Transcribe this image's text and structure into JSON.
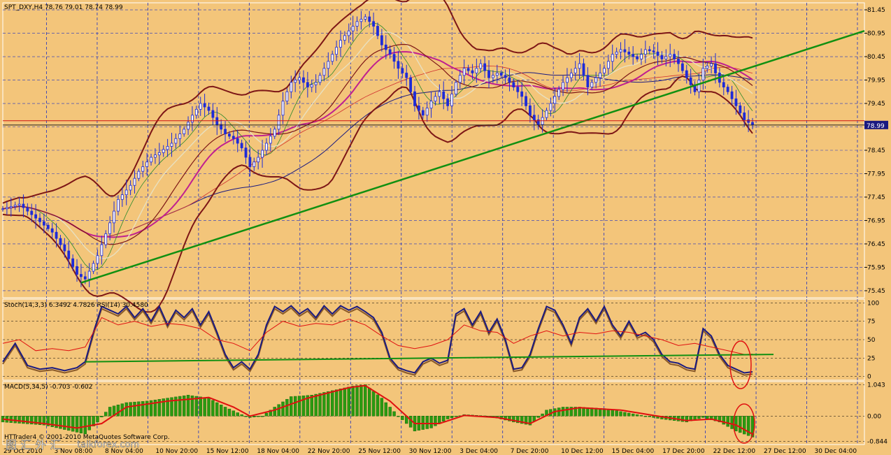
{
  "colors": {
    "background": "#f3c57a",
    "candle": "#1e2bd8",
    "bollinger": "#7d1616",
    "trendline": "#119011",
    "ma_pink": "#c02090",
    "ma_navy": "#1a1a80",
    "stoch_main": "#1a1a80",
    "stoch_signal": "#8a5a2a",
    "rsi": "#e01010",
    "macd_hist": "#2a9a10",
    "macd_signal": "#e01010",
    "grid": "#2030c0",
    "annotation": "#e01010"
  },
  "chart_data": [
    {
      "type": "candlestick",
      "title": "SPT_DXY,H4  78.76 79.01 78.74 78.99",
      "instrument": "SPT_DXY",
      "timeframe": "H4",
      "ohlc_header": {
        "open": 78.76,
        "high": 79.01,
        "low": 78.74,
        "close": 78.99
      },
      "ylim": [
        75.3,
        81.6
      ],
      "y_ticks": [
        "81.45",
        "80.95",
        "80.45",
        "79.95",
        "79.45",
        "78.95",
        "78.45",
        "77.95",
        "77.45",
        "76.95",
        "76.45",
        "75.95",
        "75.45"
      ],
      "current_price": "78.99",
      "x_labels": [
        "29 Oct 2010",
        "3 Nov 08:00",
        "8 Nov 04:00",
        "10 Nov 20:00",
        "15 Nov 12:00",
        "18 Nov 04:00",
        "22 Nov 20:00",
        "25 Nov 12:00",
        "30 Nov 12:00",
        "3 Dec 04:00",
        "7 Dec 20:00",
        "10 Dec 12:00",
        "15 Dec 04:00",
        "17 Dec 20:00",
        "22 Dec 12:00",
        "27 Dec 12:00",
        "30 Dec 04:00"
      ],
      "close_path": [
        [
          0,
          77.2
        ],
        [
          4,
          77.3
        ],
        [
          8,
          77.0
        ],
        [
          12,
          76.7
        ],
        [
          15,
          76.3
        ],
        [
          18,
          75.8
        ],
        [
          20,
          75.7
        ],
        [
          23,
          76.2
        ],
        [
          26,
          76.9
        ],
        [
          28,
          77.4
        ],
        [
          31,
          77.7
        ],
        [
          33,
          78.0
        ],
        [
          36,
          78.3
        ],
        [
          38,
          78.4
        ],
        [
          41,
          78.6
        ],
        [
          44,
          78.9
        ],
        [
          46,
          79.2
        ],
        [
          48,
          79.45
        ],
        [
          50,
          79.3
        ],
        [
          52,
          79.0
        ],
        [
          54,
          78.8
        ],
        [
          56,
          78.7
        ],
        [
          58,
          78.5
        ],
        [
          60,
          78.1
        ],
        [
          62,
          78.3
        ],
        [
          64,
          78.6
        ],
        [
          66,
          78.9
        ],
        [
          68,
          79.5
        ],
        [
          70,
          79.9
        ],
        [
          72,
          80.0
        ],
        [
          74,
          79.8
        ],
        [
          76,
          79.9
        ],
        [
          78,
          80.2
        ],
        [
          80,
          80.5
        ],
        [
          82,
          80.8
        ],
        [
          84,
          81.0
        ],
        [
          86,
          81.2
        ],
        [
          88,
          81.3
        ],
        [
          90,
          81.1
        ],
        [
          92,
          80.7
        ],
        [
          94,
          80.5
        ],
        [
          96,
          80.2
        ],
        [
          98,
          80.0
        ],
        [
          100,
          79.4
        ],
        [
          102,
          79.2
        ],
        [
          104,
          79.5
        ],
        [
          106,
          79.7
        ],
        [
          108,
          79.4
        ],
        [
          110,
          79.9
        ],
        [
          112,
          80.2
        ],
        [
          114,
          80.1
        ],
        [
          116,
          80.3
        ],
        [
          118,
          80.0
        ],
        [
          120,
          80.1
        ],
        [
          122,
          80.0
        ],
        [
          124,
          79.8
        ],
        [
          126,
          79.6
        ],
        [
          128,
          79.2
        ],
        [
          130,
          79.0
        ],
        [
          132,
          79.3
        ],
        [
          134,
          79.6
        ],
        [
          136,
          79.9
        ],
        [
          138,
          80.1
        ],
        [
          140,
          80.3
        ],
        [
          142,
          79.8
        ],
        [
          144,
          80.0
        ],
        [
          146,
          80.2
        ],
        [
          148,
          80.5
        ],
        [
          150,
          80.6
        ],
        [
          152,
          80.5
        ],
        [
          154,
          80.4
        ],
        [
          156,
          80.6
        ],
        [
          158,
          80.55
        ],
        [
          160,
          80.4
        ],
        [
          162,
          80.5
        ],
        [
          164,
          80.3
        ],
        [
          166,
          80.0
        ],
        [
          168,
          79.7
        ],
        [
          170,
          80.2
        ],
        [
          172,
          80.3
        ],
        [
          174,
          79.9
        ],
        [
          176,
          79.7
        ],
        [
          178,
          79.4
        ],
        [
          180,
          79.1
        ],
        [
          182,
          78.99
        ]
      ],
      "series": [
        {
          "name": "Stoch(14,3,3)",
          "main": 6.3492,
          "signal": 4.7826
        },
        {
          "name": "RSI(14)",
          "value": 30.458
        },
        {
          "name": "MACD(5,34,5)",
          "macd": -0.703,
          "signal": -0.602
        }
      ]
    },
    {
      "type": "line",
      "title": "Stoch(14,3,3) 6.3492 4.7826  RSI(14) 30.4580",
      "ylim": [
        -5,
        105
      ],
      "y_ticks": [
        "100",
        "75",
        "50",
        "25",
        "0"
      ],
      "stoch_path": [
        [
          0,
          20
        ],
        [
          3,
          45
        ],
        [
          6,
          15
        ],
        [
          9,
          10
        ],
        [
          12,
          12
        ],
        [
          15,
          8
        ],
        [
          18,
          12
        ],
        [
          20,
          20
        ],
        [
          22,
          60
        ],
        [
          24,
          95
        ],
        [
          26,
          90
        ],
        [
          28,
          85
        ],
        [
          30,
          95
        ],
        [
          32,
          80
        ],
        [
          34,
          92
        ],
        [
          36,
          75
        ],
        [
          38,
          95
        ],
        [
          40,
          70
        ],
        [
          42,
          90
        ],
        [
          44,
          80
        ],
        [
          46,
          92
        ],
        [
          48,
          70
        ],
        [
          50,
          88
        ],
        [
          52,
          60
        ],
        [
          54,
          30
        ],
        [
          56,
          12
        ],
        [
          58,
          20
        ],
        [
          60,
          10
        ],
        [
          62,
          30
        ],
        [
          64,
          70
        ],
        [
          66,
          95
        ],
        [
          68,
          88
        ],
        [
          70,
          96
        ],
        [
          72,
          85
        ],
        [
          74,
          92
        ],
        [
          76,
          80
        ],
        [
          78,
          96
        ],
        [
          80,
          85
        ],
        [
          82,
          96
        ],
        [
          84,
          90
        ],
        [
          86,
          95
        ],
        [
          88,
          88
        ],
        [
          90,
          80
        ],
        [
          92,
          60
        ],
        [
          94,
          25
        ],
        [
          96,
          12
        ],
        [
          98,
          8
        ],
        [
          100,
          5
        ],
        [
          102,
          20
        ],
        [
          104,
          25
        ],
        [
          106,
          18
        ],
        [
          108,
          22
        ],
        [
          110,
          85
        ],
        [
          112,
          92
        ],
        [
          114,
          70
        ],
        [
          116,
          88
        ],
        [
          118,
          60
        ],
        [
          120,
          78
        ],
        [
          122,
          50
        ],
        [
          124,
          10
        ],
        [
          126,
          12
        ],
        [
          128,
          30
        ],
        [
          130,
          65
        ],
        [
          132,
          95
        ],
        [
          134,
          90
        ],
        [
          136,
          70
        ],
        [
          138,
          45
        ],
        [
          140,
          80
        ],
        [
          142,
          92
        ],
        [
          144,
          75
        ],
        [
          146,
          95
        ],
        [
          148,
          70
        ],
        [
          150,
          55
        ],
        [
          152,
          75
        ],
        [
          154,
          55
        ],
        [
          156,
          60
        ],
        [
          158,
          50
        ],
        [
          160,
          30
        ],
        [
          162,
          20
        ],
        [
          164,
          18
        ],
        [
          166,
          12
        ],
        [
          168,
          10
        ],
        [
          170,
          65
        ],
        [
          172,
          55
        ],
        [
          174,
          30
        ],
        [
          176,
          15
        ],
        [
          178,
          10
        ],
        [
          180,
          5
        ],
        [
          182,
          6.3492
        ]
      ],
      "rsi_path": [
        [
          0,
          45
        ],
        [
          4,
          50
        ],
        [
          8,
          35
        ],
        [
          12,
          38
        ],
        [
          16,
          35
        ],
        [
          20,
          40
        ],
        [
          24,
          80
        ],
        [
          28,
          70
        ],
        [
          32,
          75
        ],
        [
          36,
          68
        ],
        [
          40,
          72
        ],
        [
          44,
          70
        ],
        [
          48,
          65
        ],
        [
          52,
          50
        ],
        [
          56,
          45
        ],
        [
          60,
          35
        ],
        [
          64,
          60
        ],
        [
          68,
          75
        ],
        [
          72,
          68
        ],
        [
          76,
          72
        ],
        [
          80,
          70
        ],
        [
          84,
          78
        ],
        [
          88,
          70
        ],
        [
          92,
          55
        ],
        [
          96,
          42
        ],
        [
          100,
          38
        ],
        [
          104,
          42
        ],
        [
          108,
          50
        ],
        [
          112,
          70
        ],
        [
          116,
          62
        ],
        [
          120,
          60
        ],
        [
          124,
          45
        ],
        [
          128,
          55
        ],
        [
          132,
          62
        ],
        [
          136,
          55
        ],
        [
          140,
          60
        ],
        [
          144,
          58
        ],
        [
          148,
          62
        ],
        [
          152,
          60
        ],
        [
          156,
          55
        ],
        [
          160,
          50
        ],
        [
          164,
          42
        ],
        [
          168,
          45
        ],
        [
          172,
          40
        ],
        [
          176,
          35
        ],
        [
          180,
          30
        ],
        [
          182,
          30.458
        ]
      ]
    },
    {
      "type": "bar",
      "title": "MACD(5,34,5) -0.703 -0.602",
      "ylim": [
        -0.95,
        1.15
      ],
      "y_ticks": [
        "1.043",
        "0.00",
        "-0.844"
      ],
      "macd_path": [
        [
          0,
          -0.2
        ],
        [
          5,
          -0.25
        ],
        [
          10,
          -0.3
        ],
        [
          15,
          -0.45
        ],
        [
          20,
          -0.6
        ],
        [
          23,
          -0.2
        ],
        [
          26,
          0.3
        ],
        [
          30,
          0.45
        ],
        [
          35,
          0.5
        ],
        [
          40,
          0.6
        ],
        [
          45,
          0.7
        ],
        [
          50,
          0.6
        ],
        [
          54,
          0.3
        ],
        [
          58,
          0.05
        ],
        [
          60,
          -0.05
        ],
        [
          63,
          0.0
        ],
        [
          66,
          0.3
        ],
        [
          70,
          0.65
        ],
        [
          75,
          0.7
        ],
        [
          80,
          0.85
        ],
        [
          85,
          1.0
        ],
        [
          88,
          1.05
        ],
        [
          92,
          0.6
        ],
        [
          96,
          0.0
        ],
        [
          100,
          -0.5
        ],
        [
          104,
          -0.4
        ],
        [
          108,
          -0.1
        ],
        [
          112,
          0.05
        ],
        [
          118,
          0.0
        ],
        [
          124,
          -0.2
        ],
        [
          128,
          -0.3
        ],
        [
          132,
          0.2
        ],
        [
          136,
          0.3
        ],
        [
          140,
          0.3
        ],
        [
          146,
          0.25
        ],
        [
          150,
          0.15
        ],
        [
          156,
          0.0
        ],
        [
          160,
          -0.1
        ],
        [
          166,
          -0.2
        ],
        [
          170,
          -0.05
        ],
        [
          174,
          -0.2
        ],
        [
          178,
          -0.5
        ],
        [
          182,
          -0.703
        ]
      ],
      "signal_path": [
        [
          0,
          -0.1
        ],
        [
          10,
          -0.25
        ],
        [
          18,
          -0.4
        ],
        [
          24,
          -0.25
        ],
        [
          30,
          0.3
        ],
        [
          40,
          0.5
        ],
        [
          50,
          0.62
        ],
        [
          56,
          0.3
        ],
        [
          60,
          0.0
        ],
        [
          66,
          0.2
        ],
        [
          74,
          0.6
        ],
        [
          84,
          0.95
        ],
        [
          88,
          1.02
        ],
        [
          94,
          0.5
        ],
        [
          100,
          -0.25
        ],
        [
          106,
          -0.25
        ],
        [
          112,
          0.02
        ],
        [
          120,
          -0.05
        ],
        [
          128,
          -0.25
        ],
        [
          134,
          0.15
        ],
        [
          140,
          0.28
        ],
        [
          150,
          0.2
        ],
        [
          158,
          0.02
        ],
        [
          166,
          -0.15
        ],
        [
          172,
          -0.1
        ],
        [
          178,
          -0.3
        ],
        [
          182,
          -0.602
        ]
      ]
    }
  ],
  "watermark": "HTTrader4 © 2001-2010 MetaQuotes Software Corp.",
  "watermark_site": "talkforex.com",
  "watermark_cn": "图 汇 外 汇"
}
